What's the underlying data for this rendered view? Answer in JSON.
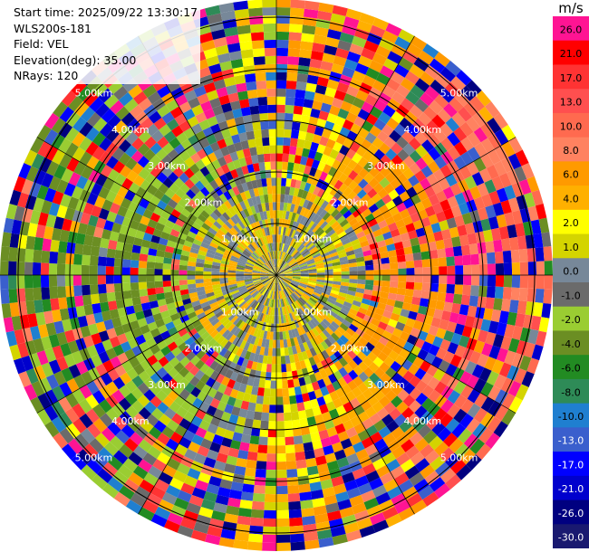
{
  "header": {
    "start_time": "Start time: 2025/09/22 13:30:17",
    "instrument": "WLS200s-181",
    "field": "Field: VEL",
    "elevation": "Elevation(deg): 35.00",
    "nrays": "NRays: 120"
  },
  "colorbar": {
    "unit": "m/s",
    "ticks": [
      "26.0",
      "21.0",
      "17.0",
      "13.0",
      "10.0",
      "8.0",
      "6.0",
      "4.0",
      "2.0",
      "1.0",
      "0.0",
      "-1.0",
      "-2.0",
      "-4.0",
      "-6.0",
      "-8.0",
      "-10.0",
      "-13.0",
      "-17.0",
      "-21.0",
      "-26.0",
      "-30.0"
    ],
    "colors": [
      "#ff1493",
      "#ff0000",
      "#ff3333",
      "#ff4f4f",
      "#ff6a4f",
      "#ff8260",
      "#ff9a00",
      "#ffb000",
      "#ffff00",
      "#d4d400",
      "#778899",
      "#6b6b6b",
      "#9acd32",
      "#6b8e23",
      "#228b22",
      "#2e8b57",
      "#1f7fd0",
      "#3a5fcd",
      "#0000ff",
      "#0000cd",
      "#000080",
      "#191970"
    ]
  },
  "chart_data": {
    "type": "heatmap",
    "plot_kind": "PPI polar sector plot",
    "field": "VEL",
    "units": "m/s",
    "n_rays": 120,
    "elevation_deg": 35.0,
    "range_rings_km": [
      1,
      2,
      3,
      4,
      5
    ],
    "range_ring_labels": [
      "1.00km",
      "2.00km",
      "3.00km",
      "4.00km",
      "5.00km"
    ],
    "value_range": [
      -30.0,
      26.0
    ],
    "grid": true,
    "pattern": "near-range bins mostly gray/light-green (0 to -2 m/s) with yellow (2-4 m/s) patches; mid range green to the west and orange to the east; outer ranges noisy with red, magenta, blue and navy bins"
  }
}
